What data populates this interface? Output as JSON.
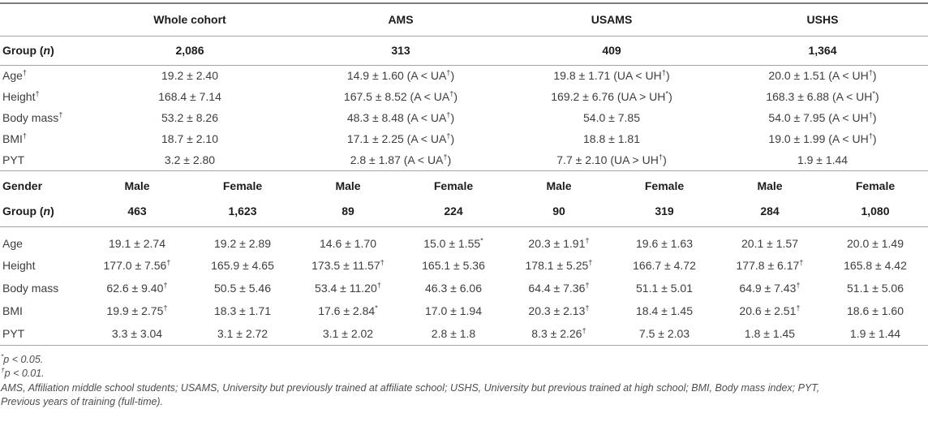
{
  "header": {
    "cohort_cols": [
      "Whole cohort",
      "AMS",
      "USAMS",
      "USHS"
    ]
  },
  "group_label": {
    "pre": "Group (",
    "italic": "n",
    "post": ")"
  },
  "cohort": {
    "group_n": [
      "2,086",
      "313",
      "409",
      "1,364"
    ],
    "rows": [
      {
        "label": "Age†",
        "values": [
          "19.2 ± 2.40",
          "14.9 ± 1.60 (A < UA†)",
          "19.8 ± 1.71 (UA < UH†)",
          "20.0 ± 1.51 (A < UH†)"
        ]
      },
      {
        "label": "Height†",
        "values": [
          "168.4 ± 7.14",
          "167.5 ± 8.52 (A < UA†)",
          "169.2 ± 6.76 (UA > UH*)",
          "168.3 ± 6.88 (A < UH*)"
        ]
      },
      {
        "label": "Body mass†",
        "values": [
          "53.2 ± 8.26",
          "48.3 ± 8.48 (A < UA†)",
          "54.0 ± 7.85",
          "54.0 ± 7.95 (A < UH†)"
        ]
      },
      {
        "label": "BMI†",
        "values": [
          "18.7 ± 2.10",
          "17.1 ± 2.25 (A < UA†)",
          "18.8 ± 1.81",
          "19.0 ± 1.99 (A < UH†)"
        ]
      },
      {
        "label": "PYT",
        "values": [
          "3.2 ± 2.80",
          "2.8 ± 1.87 (A < UA†)",
          "7.7 ± 2.10 (UA > UH†)",
          "1.9 ± 1.44"
        ]
      }
    ]
  },
  "gender": {
    "label": "Gender",
    "cols": [
      "Male",
      "Female",
      "Male",
      "Female",
      "Male",
      "Female",
      "Male",
      "Female"
    ],
    "group_n": [
      "463",
      "1,623",
      "89",
      "224",
      "90",
      "319",
      "284",
      "1,080"
    ],
    "rows": [
      {
        "label": "Age",
        "values": [
          "19.1 ± 2.74",
          "19.2 ± 2.89",
          "14.6 ± 1.70",
          "15.0 ± 1.55*",
          "20.3 ± 1.91†",
          "19.6 ± 1.63",
          "20.1 ± 1.57",
          "20.0 ± 1.49"
        ]
      },
      {
        "label": "Height",
        "values": [
          "177.0 ± 7.56†",
          "165.9 ± 4.65",
          "173.5 ± 11.57†",
          "165.1 ± 5.36",
          "178.1 ± 5.25†",
          "166.7 ± 4.72",
          "177.8 ± 6.17†",
          "165.8 ± 4.42"
        ]
      },
      {
        "label": "Body mass",
        "values": [
          "62.6 ± 9.40†",
          "50.5 ± 5.46",
          "53.4 ± 11.20†",
          "46.3 ± 6.06",
          "64.4 ± 7.36†",
          "51.1 ± 5.01",
          "64.9 ± 7.43†",
          "51.1 ± 5.06"
        ]
      },
      {
        "label": "BMI",
        "values": [
          "19.9 ± 2.75†",
          "18.3 ± 1.71",
          "17.6 ± 2.84*",
          "17.0 ± 1.94",
          "20.3 ± 2.13†",
          "18.4 ± 1.45",
          "20.6 ± 2.51†",
          "18.6 ± 1.60"
        ]
      },
      {
        "label": "PYT",
        "values": [
          "3.3 ± 3.04",
          "3.1 ± 2.72",
          "3.1 ± 2.02",
          "2.8 ± 1.8",
          "8.3 ± 2.26†",
          "7.5 ± 2.03",
          "1.8 ± 1.45",
          "1.9 ± 1.44"
        ]
      }
    ]
  },
  "footnotes": {
    "sig": [
      {
        "marker": "*",
        "text": "p < 0.05."
      },
      {
        "marker": "†",
        "text": "p < 0.01."
      }
    ],
    "abbrev_lines": [
      "AMS, Affiliation middle school students; USAMS, University but previously trained at affiliate school; USHS, University but previous trained at high school; BMI, Body mass index; PYT,",
      "Previous years of training (full-time)."
    ]
  }
}
